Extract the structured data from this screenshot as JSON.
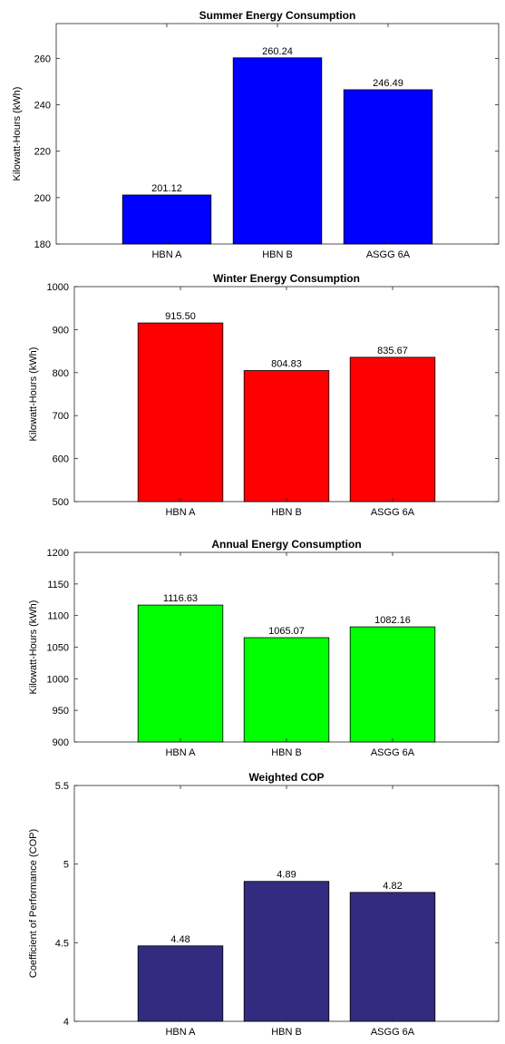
{
  "chart_data": [
    {
      "type": "bar",
      "title": "Summer Energy Consumption",
      "xlabel": "",
      "ylabel": "Kilowatt-Hours (kWh)",
      "categories": [
        "HBN A",
        "HBN B",
        "ASGG 6A"
      ],
      "values": [
        201.12,
        260.24,
        246.49
      ],
      "value_labels": [
        "201.12",
        "260.24",
        "246.49"
      ],
      "ylim": [
        180,
        275
      ],
      "yticks": [
        180,
        200,
        220,
        240,
        260
      ],
      "bar_color": "#0000ff",
      "grid": false,
      "legend": "none"
    },
    {
      "type": "bar",
      "title": "Winter Energy Consumption",
      "xlabel": "",
      "ylabel": "Kilowatt-Hours (kWh)",
      "categories": [
        "HBN A",
        "HBN B",
        "ASGG 6A"
      ],
      "values": [
        915.5,
        804.83,
        835.67
      ],
      "value_labels": [
        "915.50",
        "804.83",
        "835.67"
      ],
      "ylim": [
        500,
        1000
      ],
      "yticks": [
        500,
        600,
        700,
        800,
        900,
        1000
      ],
      "bar_color": "#ff0000",
      "grid": false,
      "legend": "none"
    },
    {
      "type": "bar",
      "title": "Annual Energy Consumption",
      "xlabel": "",
      "ylabel": "Kilowatt-Hours (kWh)",
      "categories": [
        "HBN A",
        "HBN B",
        "ASGG 6A"
      ],
      "values": [
        1116.63,
        1065.07,
        1082.16
      ],
      "value_labels": [
        "1116.63",
        "1065.07",
        "1082.16"
      ],
      "ylim": [
        900,
        1200
      ],
      "yticks": [
        900,
        950,
        1000,
        1050,
        1100,
        1150,
        1200
      ],
      "bar_color": "#00ff00",
      "grid": false,
      "legend": "none"
    },
    {
      "type": "bar",
      "title": "Weighted COP",
      "xlabel": "",
      "ylabel": "Coefficient of Performance (COP)",
      "categories": [
        "HBN A",
        "HBN B",
        "ASGG 6A"
      ],
      "values": [
        4.48,
        4.89,
        4.82
      ],
      "value_labels": [
        "4.48",
        "4.89",
        "4.82"
      ],
      "ylim": [
        4,
        5.5
      ],
      "yticks": [
        4,
        4.5,
        5,
        5.5
      ],
      "bar_color": "#332b80",
      "grid": false,
      "legend": "none"
    }
  ]
}
